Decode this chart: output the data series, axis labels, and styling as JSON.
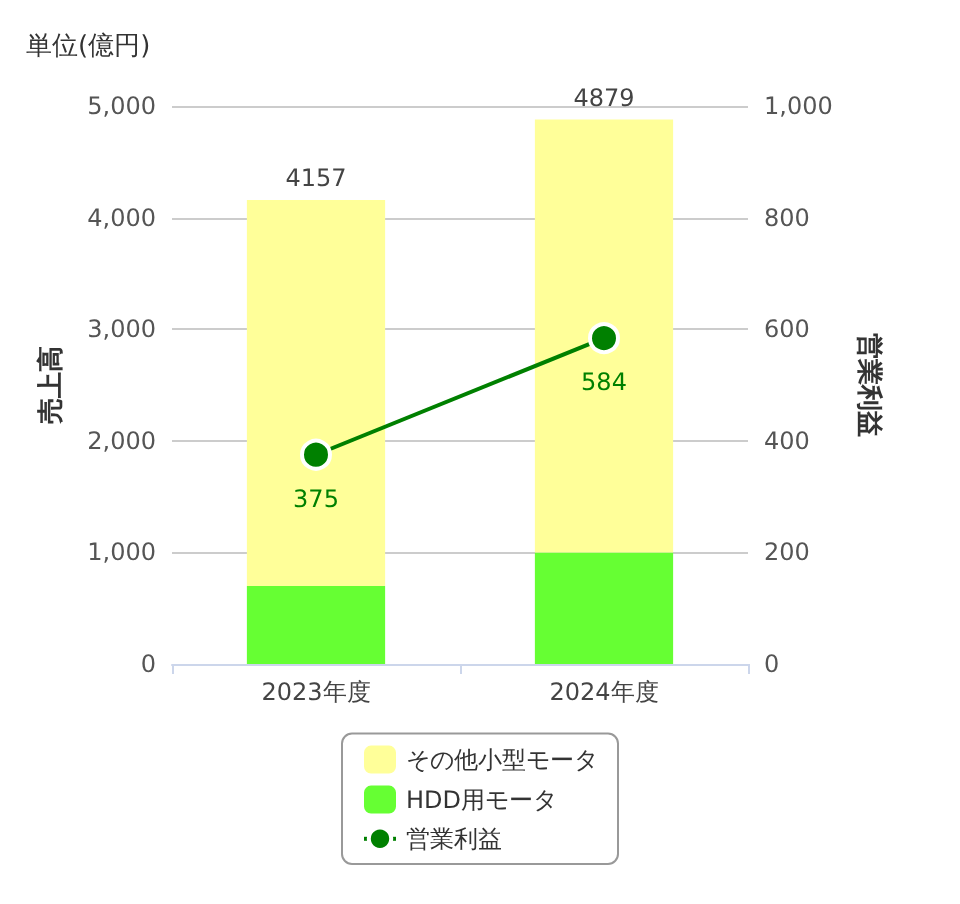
{
  "chart_data": {
    "type": "bar",
    "title": "単位(億円)",
    "ylabel": "売上高",
    "y2label": "営業利益",
    "categories": [
      "2023年度",
      "2024年度"
    ],
    "stacked": true,
    "series": [
      {
        "name": "HDD用モータ",
        "color": "#66ff33",
        "values": [
          700,
          1000
        ]
      },
      {
        "name": "その他小型モータ",
        "color": "#ffff99",
        "values": [
          3457,
          3879
        ]
      },
      {
        "name": "営業利益",
        "type": "line",
        "axis": "y2",
        "color": "#008000",
        "values": [
          375,
          584
        ],
        "value_labels": [
          "375",
          "584"
        ],
        "marker": "circle"
      }
    ],
    "totals": [
      "4157",
      "4879"
    ],
    "ylim": [
      0,
      5000
    ],
    "yticks": [
      0,
      {
        "value": 1000,
        "label": "1,000"
      },
      {
        "value": 2000,
        "label": "2,000"
      },
      {
        "value": 3000,
        "label": "3,000"
      },
      {
        "value": 4000,
        "label": "4,000"
      },
      {
        "value": 5000,
        "label": "5,000"
      }
    ],
    "y2lim": [
      0,
      1000
    ],
    "y2ticks": [
      0,
      200,
      400,
      600,
      800,
      {
        "value": 1000,
        "label": "1,000"
      }
    ],
    "grid": "y",
    "legend": "bottom"
  }
}
